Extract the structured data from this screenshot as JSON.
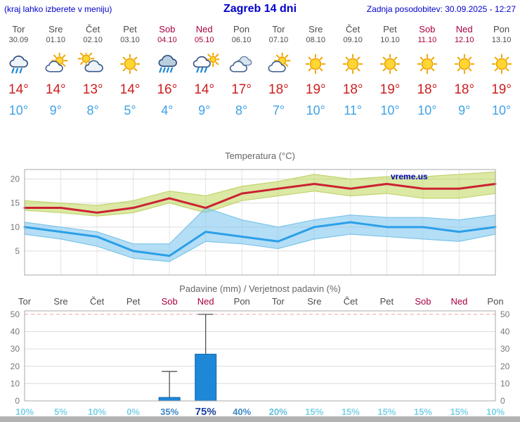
{
  "header": {
    "hint": "(kraj lahko izberete v meniju)",
    "title": "Zagreb 14 dni",
    "updated": "Zadnja posodobitev: 30.09.2025 - 12:27"
  },
  "colors": {
    "link_blue": "#0000cc",
    "weekday_text": "#4d4d4d",
    "weekend_text": "#a70042",
    "tmax_text": "#cc1f1f",
    "tmin_text": "#3fa2e6",
    "watermark_blue": "#0000bb",
    "axis_text": "#777777",
    "grid_line": "#dcdcdc",
    "grid_line_50": "#f0a0a0",
    "plot_border": "#aaaaaa",
    "bar_fill": "#1e87d8",
    "bottom_bar": "#b3b3b3"
  },
  "days": [
    {
      "name": "Tor",
      "date": "30.09",
      "weekend": false,
      "icon": "rain-cloud",
      "tmax": "14°",
      "tmin": "10°"
    },
    {
      "name": "Sre",
      "date": "01.10",
      "weekend": false,
      "icon": "partly-cloudy",
      "tmax": "14°",
      "tmin": "9°"
    },
    {
      "name": "Čet",
      "date": "02.10",
      "weekend": false,
      "icon": "mostly-cloudy",
      "tmax": "13°",
      "tmin": "8°"
    },
    {
      "name": "Pet",
      "date": "03.10",
      "weekend": false,
      "icon": "sunny",
      "tmax": "14°",
      "tmin": "5°"
    },
    {
      "name": "Sob",
      "date": "04.10",
      "weekend": true,
      "icon": "heavy-rain",
      "tmax": "16°",
      "tmin": "4°"
    },
    {
      "name": "Ned",
      "date": "05.10",
      "weekend": true,
      "icon": "sun-shower",
      "tmax": "14°",
      "tmin": "9°"
    },
    {
      "name": "Pon",
      "date": "06.10",
      "weekend": false,
      "icon": "cloudy",
      "tmax": "17°",
      "tmin": "8°"
    },
    {
      "name": "Tor",
      "date": "07.10",
      "weekend": false,
      "icon": "partly-cloudy",
      "tmax": "18°",
      "tmin": "7°"
    },
    {
      "name": "Sre",
      "date": "08.10",
      "weekend": false,
      "icon": "sunny",
      "tmax": "19°",
      "tmin": "10°"
    },
    {
      "name": "Čet",
      "date": "09.10",
      "weekend": false,
      "icon": "sunny",
      "tmax": "18°",
      "tmin": "11°"
    },
    {
      "name": "Pet",
      "date": "10.10",
      "weekend": false,
      "icon": "sunny",
      "tmax": "19°",
      "tmin": "10°"
    },
    {
      "name": "Sob",
      "date": "11.10",
      "weekend": true,
      "icon": "sunny",
      "tmax": "18°",
      "tmin": "10°"
    },
    {
      "name": "Ned",
      "date": "12.10",
      "weekend": true,
      "icon": "sunny",
      "tmax": "18°",
      "tmin": "9°"
    },
    {
      "name": "Pon",
      "date": "13.10",
      "weekend": false,
      "icon": "sunny",
      "tmax": "19°",
      "tmin": "10°"
    }
  ],
  "chart_data": [
    {
      "type": "line",
      "title": "Temperatura (°C)",
      "watermark": "vreme.us",
      "ylim": [
        0,
        22
      ],
      "yticks": [
        5,
        10,
        15,
        20
      ],
      "grid": true,
      "legend_position": "none",
      "x_days": [
        "Tor 30.09",
        "Sre 01.10",
        "Čet 02.10",
        "Pet 03.10",
        "Sob 04.10",
        "Ned 05.10",
        "Pon 06.10",
        "Tor 07.10",
        "Sre 08.10",
        "Čet 09.10",
        "Pet 10.10",
        "Sob 11.10",
        "Ned 12.10",
        "Pon 13.10"
      ],
      "series": [
        {
          "name": "max-temperature",
          "color": "#cc2233",
          "values": [
            14,
            14,
            13,
            14,
            16,
            14,
            17,
            18,
            19,
            18,
            19,
            18,
            18,
            19
          ]
        },
        {
          "name": "min-temperature",
          "color": "#2b9fe8",
          "values": [
            10,
            9,
            8,
            5,
            4,
            9,
            8,
            7,
            10,
            11,
            10,
            10,
            9,
            10
          ]
        }
      ],
      "bands": [
        {
          "name": "max-range",
          "fill": "rgba(190,215,90,0.55)",
          "stroke": "#c2d46e",
          "upper": [
            15.5,
            15,
            14.5,
            15.5,
            17.5,
            16.5,
            18.5,
            19.5,
            21,
            20,
            20.5,
            20.5,
            21,
            21.5
          ],
          "lower": [
            13.5,
            13,
            12.3,
            13,
            15,
            13,
            15.5,
            16.5,
            17.5,
            16.5,
            17,
            16,
            16,
            17
          ]
        },
        {
          "name": "min-range",
          "fill": "rgba(130,200,240,0.6)",
          "stroke": "#7cc4e8",
          "upper": [
            11,
            10,
            9,
            6.5,
            6.5,
            14,
            11.5,
            10,
            11.5,
            12.5,
            12,
            12,
            11.5,
            12.5
          ],
          "lower": [
            8.5,
            7.5,
            6,
            3.5,
            2.8,
            7,
            6.5,
            5.5,
            7.5,
            8.5,
            8,
            7.5,
            7,
            8.5
          ]
        }
      ]
    },
    {
      "type": "bar",
      "title": "Padavine (mm) / Verjetnost padavin (%)",
      "categories": [
        "Tor",
        "Sre",
        "Čet",
        "Pet",
        "Sob",
        "Ned",
        "Pon",
        "Tor",
        "Sre",
        "Čet",
        "Pet",
        "Sob",
        "Ned",
        "Pon"
      ],
      "weekend": [
        false,
        false,
        false,
        false,
        true,
        true,
        false,
        false,
        false,
        false,
        false,
        true,
        true,
        false
      ],
      "values": [
        0,
        0,
        0,
        0,
        2,
        27,
        0,
        0,
        0,
        0,
        0,
        0,
        0,
        0
      ],
      "whisker_top": [
        null,
        null,
        null,
        null,
        17,
        50,
        null,
        null,
        null,
        null,
        null,
        null,
        null,
        null
      ],
      "bar_color": "#1e87d8",
      "bar_border": "#1565a8",
      "ylim": [
        0,
        52
      ],
      "yticks": [
        0,
        10,
        20,
        30,
        40,
        50
      ],
      "grid": true,
      "probabilities": [
        {
          "label": "10%",
          "color": "#7cd2e8",
          "emph": false
        },
        {
          "label": "5%",
          "color": "#7cd2e8",
          "emph": false
        },
        {
          "label": "10%",
          "color": "#7cd2e8",
          "emph": false
        },
        {
          "label": "0%",
          "color": "#7cd2e8",
          "emph": false
        },
        {
          "label": "35%",
          "color": "#3d86c2",
          "emph": false
        },
        {
          "label": "75%",
          "color": "#1b3f9e",
          "emph": true
        },
        {
          "label": "40%",
          "color": "#3d86c2",
          "emph": false
        },
        {
          "label": "20%",
          "color": "#5fc0dd",
          "emph": false
        },
        {
          "label": "15%",
          "color": "#7cd2e8",
          "emph": false
        },
        {
          "label": "15%",
          "color": "#7cd2e8",
          "emph": false
        },
        {
          "label": "15%",
          "color": "#7cd2e8",
          "emph": false
        },
        {
          "label": "15%",
          "color": "#7cd2e8",
          "emph": false
        },
        {
          "label": "15%",
          "color": "#7cd2e8",
          "emph": false
        },
        {
          "label": "10%",
          "color": "#7cd2e8",
          "emph": false
        }
      ]
    }
  ]
}
